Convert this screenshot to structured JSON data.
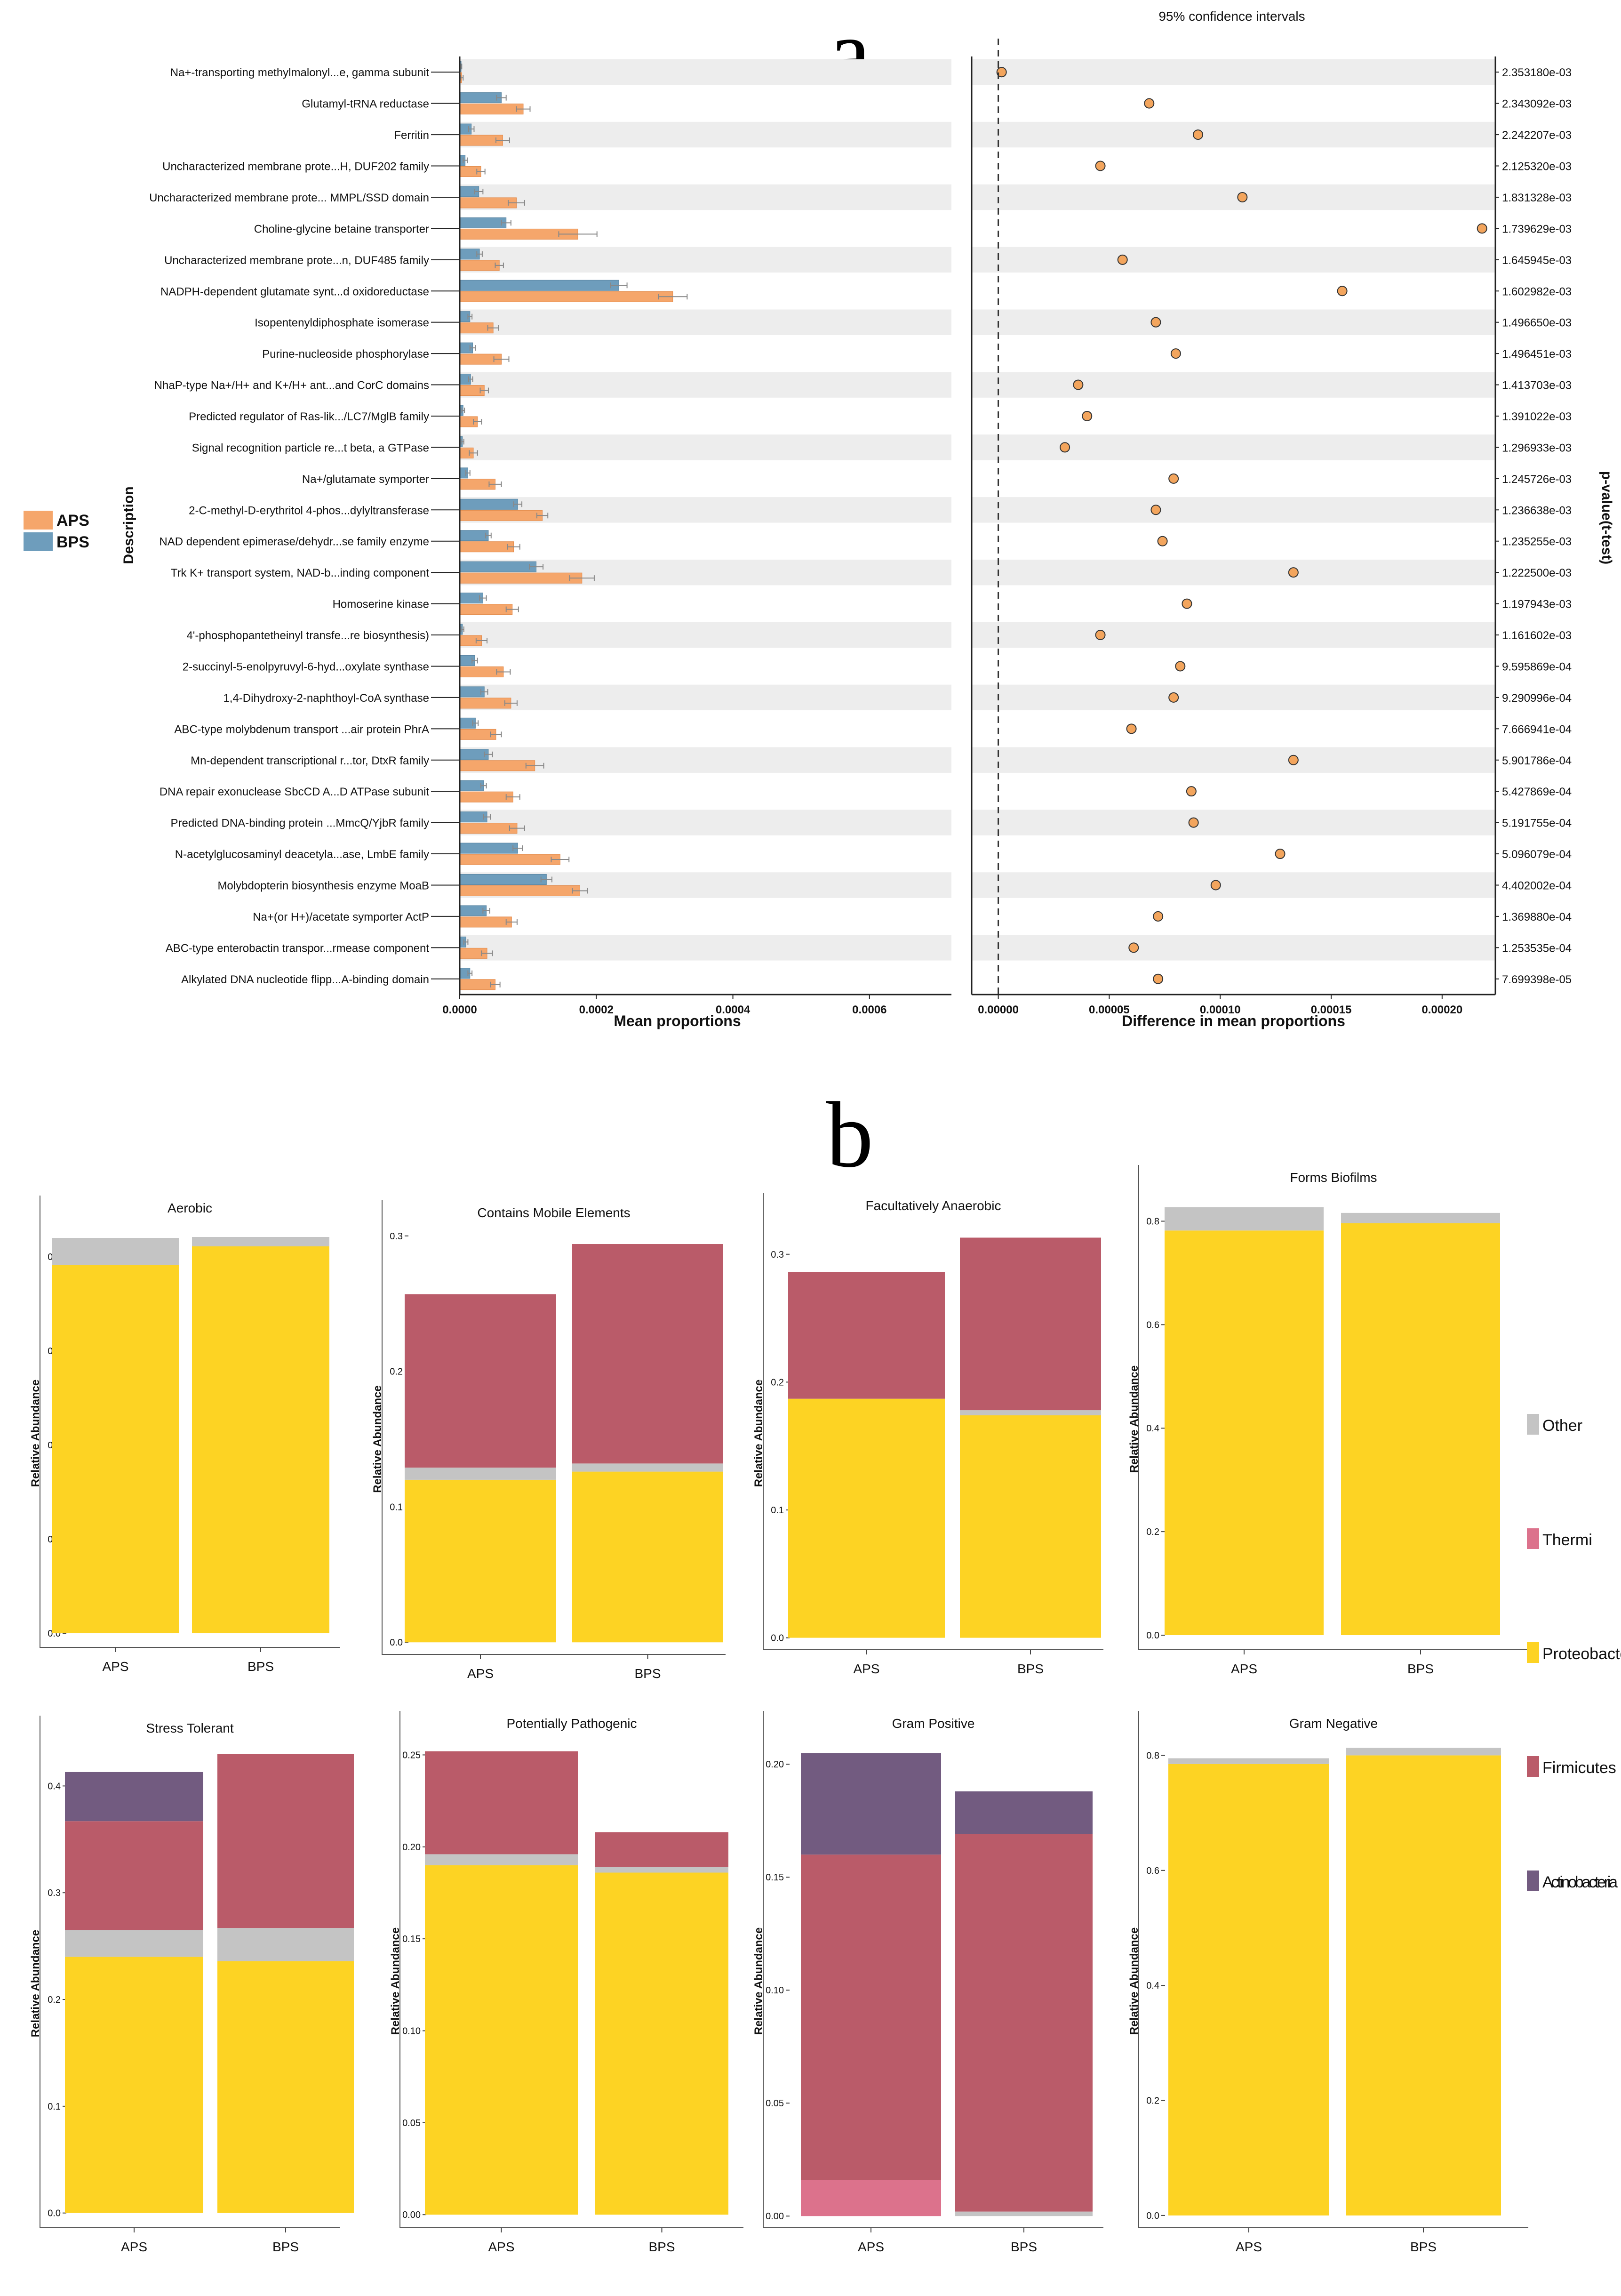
{
  "panel_labels": {
    "a": "a",
    "b": "b"
  },
  "colors": {
    "APS": "#F5A66B",
    "BPS": "#6E9DBC",
    "dot": "#F3A55D",
    "Other": "#C4C4C4",
    "Thermi": "#DC728C",
    "Proteobacteria": "#FDD323",
    "Firmicutes": "#BA5B69",
    "Actinobacteria": "#725B80"
  },
  "legend_a": [
    {
      "name": "APS",
      "color": "#F5A66B"
    },
    {
      "name": "BPS",
      "color": "#6E9DBC"
    }
  ],
  "legend_b": [
    {
      "name": "Other",
      "color": "#C4C4C4"
    },
    {
      "name": "Thermi",
      "color": "#DC728C"
    },
    {
      "name": "Proteobacteria",
      "color": "#FDD323"
    },
    {
      "name": "Firmicutes",
      "color": "#BA5B69"
    },
    {
      "name": "Actinobacteria",
      "color": "#725B80"
    }
  ],
  "chart_data": [
    {
      "id": "a-left",
      "type": "bar",
      "orientation": "horizontal",
      "xlabel": "Mean proportions",
      "ylabel": "Description",
      "xlim": [
        0,
        0.00072
      ],
      "xticks": [
        "0.0000",
        "0.0002",
        "0.0004",
        "0.0006"
      ],
      "xtick_values": [
        0,
        0.0002,
        0.0004,
        0.0006
      ],
      "categories": [
        "Na+-transporting methylmalonyl...e, gamma subunit",
        "Glutamyl-tRNA reductase",
        "Ferritin",
        "Uncharacterized membrane prote...H, DUF202 family",
        "Uncharacterized membrane prote... MMPL/SSD domain",
        "Choline-glycine betaine transporter",
        "Uncharacterized membrane prote...n, DUF485 family",
        "NADPH-dependent glutamate synt...d oxidoreductase",
        "Isopentenyldiphosphate isomerase",
        "Purine-nucleoside phosphorylase",
        "NhaP-type Na+/H+ and K+/H+ ant...and CorC domains",
        "Predicted regulator of Ras-lik.../LC7/MglB family",
        "Signal recognition particle re...t beta, a GTPase",
        "Na+/glutamate symporter",
        "2-C-methyl-D-erythritol 4-phos...dylyltransferase",
        "NAD dependent epimerase/dehydr...se family enzyme",
        "Trk K+ transport system, NAD-b...inding component",
        "Homoserine kinase",
        "4'-phosphopantetheinyl transfe...re biosynthesis)",
        "2-succinyl-5-enolpyruvyl-6-hyd...oxylate synthase",
        "1,4-Dihydroxy-2-naphthoyl-CoA synthase",
        "ABC-type molybdenum transport ...air protein PhrA",
        "Mn-dependent transcriptional r...tor, DtxR family",
        "DNA repair exonuclease SbcCD A...D ATPase subunit",
        "Predicted DNA-binding protein ...MmcQ/YjbR family",
        "N-acetylglucosaminyl deacetyla...ase, LmbE family",
        "Molybdopterin biosynthesis enzyme MoaB",
        "Na+(or H+)/acetate symporter ActP",
        "ABC-type enterobactin transpor...rmease component",
        "Alkylated DNA nucleotide flipp...A-binding domain"
      ],
      "series": [
        {
          "name": "APS",
          "values": [
            3e-06,
            9.3e-05,
            6.3e-05,
            3.1e-05,
            8.3e-05,
            0.000173,
            5.8e-05,
            0.000312,
            4.9e-05,
            6.1e-05,
            3.6e-05,
            2.6e-05,
            2e-05,
            5.2e-05,
            0.000121,
            7.9e-05,
            0.000179,
            7.7e-05,
            3.2e-05,
            6.4e-05,
            7.5e-05,
            5.3e-05,
            0.00011,
            7.8e-05,
            8.4e-05,
            0.000147,
            0.000176,
            7.6e-05,
            4e-05,
            5.2e-05
          ],
          "errors": [
            2e-06,
            1e-05,
            1e-05,
            6e-06,
            1.2e-05,
            2.8e-05,
            6e-06,
            2.1e-05,
            8e-06,
            1.1e-05,
            6e-06,
            6e-06,
            6e-06,
            9e-06,
            8e-06,
            9e-06,
            1.8e-05,
            9e-06,
            8e-06,
            1e-05,
            9e-06,
            8e-06,
            1.3e-05,
            1e-05,
            1.1e-05,
            1.3e-05,
            1.1e-05,
            8e-06,
            8e-06,
            7e-06
          ]
        },
        {
          "name": "BPS",
          "values": [
            2e-06,
            6.1e-05,
            1.7e-05,
            8e-06,
            2.8e-05,
            6.8e-05,
            2.9e-05,
            0.000233,
            1.5e-05,
            1.9e-05,
            1.6e-05,
            5e-06,
            4e-06,
            1.2e-05,
            8.5e-05,
            4.2e-05,
            0.000112,
            3.4e-05,
            4e-06,
            2.2e-05,
            3.6e-05,
            2.3e-05,
            4.2e-05,
            3.5e-05,
            4e-05,
            8.5e-05,
            0.000127,
            3.9e-05,
            9e-06,
            1.5e-05
          ],
          "errors": [
            1e-06,
            7e-06,
            4e-06,
            3e-06,
            6e-06,
            7e-06,
            4e-06,
            1.2e-05,
            3e-06,
            4e-06,
            3e-06,
            2e-06,
            2e-06,
            3e-06,
            6e-06,
            4e-06,
            1e-05,
            5e-06,
            2e-06,
            4e-06,
            5e-06,
            4e-06,
            6e-06,
            4e-06,
            5e-06,
            7e-06,
            8e-06,
            5e-06,
            3e-06,
            3e-06
          ]
        }
      ]
    },
    {
      "id": "a-right",
      "type": "scatter",
      "title": "95% confidence intervals",
      "xlabel": "Difference in mean proportions",
      "y2label": "p-value(t-test)",
      "xlim": [
        -1.2e-05,
        0.000224
      ],
      "xticks": [
        "0.00000",
        "0.00005",
        "0.00010",
        "0.00015",
        "0.00020"
      ],
      "xtick_values": [
        0,
        5e-05,
        0.0001,
        0.00015,
        0.0002
      ],
      "values": [
        1.5e-06,
        6.8e-05,
        9e-05,
        4.6e-05,
        0.00011,
        0.000218,
        5.6e-05,
        0.000155,
        7.1e-05,
        8e-05,
        3.6e-05,
        4e-05,
        3e-05,
        7.9e-05,
        7.1e-05,
        7.4e-05,
        0.000133,
        8.5e-05,
        4.6e-05,
        8.2e-05,
        7.9e-05,
        6e-05,
        0.000133,
        8.7e-05,
        8.8e-05,
        0.000127,
        9.8e-05,
        7.2e-05,
        6.1e-05,
        7.2e-05
      ],
      "pvalues": [
        "2.353180e-03",
        "2.343092e-03",
        "2.242207e-03",
        "2.125320e-03",
        "1.831328e-03",
        "1.739629e-03",
        "1.645945e-03",
        "1.602982e-03",
        "1.496650e-03",
        "1.496451e-03",
        "1.413703e-03",
        "1.391022e-03",
        "1.296933e-03",
        "1.245726e-03",
        "1.236638e-03",
        "1.235255e-03",
        "1.222500e-03",
        "1.197943e-03",
        "1.161602e-03",
        "9.595869e-04",
        "9.290996e-04",
        "7.666941e-04",
        "5.901786e-04",
        "5.427869e-04",
        "5.191755e-04",
        "5.096079e-04",
        "4.402002e-04",
        "1.369880e-04",
        "1.253535e-04",
        "7.699398e-05"
      ]
    },
    {
      "id": "b-aerobic",
      "type": "bar",
      "stacked": true,
      "title": "Aerobic",
      "ylabel": "Relative Abundance",
      "ylim": [
        -0.01,
        0.86
      ],
      "yticks": [
        "0.0",
        "0.2",
        "0.4",
        "0.6",
        "0.8"
      ],
      "ytick_values": [
        0,
        0.2,
        0.4,
        0.6,
        0.8
      ],
      "categories": [
        "APS",
        "BPS"
      ],
      "series": [
        {
          "name": "Proteobacteria",
          "values": [
            0.782,
            0.822
          ]
        },
        {
          "name": "Other",
          "values": [
            0.058,
            0.02
          ]
        }
      ]
    },
    {
      "id": "b-mobile",
      "type": "bar",
      "stacked": true,
      "title": "Contains Mobile Elements",
      "ylabel": "Relative Abundance",
      "ylim": [
        -0.002,
        0.302
      ],
      "yticks": [
        "0.0",
        "0.1",
        "0.2",
        "0.3"
      ],
      "ytick_values": [
        0,
        0.1,
        0.2,
        0.3
      ],
      "categories": [
        "APS",
        "BPS"
      ],
      "series": [
        {
          "name": "Proteobacteria",
          "values": [
            0.12,
            0.126
          ]
        },
        {
          "name": "Other",
          "values": [
            0.009,
            0.006
          ]
        },
        {
          "name": "Firmicutes",
          "values": [
            0.128,
            0.162
          ]
        }
      ]
    },
    {
      "id": "b-facultative",
      "type": "bar",
      "stacked": true,
      "title": "Facultatively Anaerobic",
      "ylabel": "Relative Abundance",
      "ylim": [
        -0.002,
        0.322
      ],
      "yticks": [
        "0.0",
        "0.1",
        "0.2",
        "0.3"
      ],
      "ytick_values": [
        0,
        0.1,
        0.2,
        0.3
      ],
      "categories": [
        "APS",
        "BPS"
      ],
      "series": [
        {
          "name": "Proteobacteria",
          "values": [
            0.187,
            0.174
          ]
        },
        {
          "name": "Other",
          "values": [
            0.0,
            0.004
          ]
        },
        {
          "name": "Firmicutes",
          "values": [
            0.099,
            0.135
          ]
        }
      ]
    },
    {
      "id": "b-biofilms",
      "type": "bar",
      "stacked": true,
      "title": "Forms Biofilms",
      "ylabel": "Relative Abundance",
      "ylim": [
        -0.01,
        0.845
      ],
      "yticks": [
        "0.0",
        "0.2",
        "0.4",
        "0.6",
        "0.8"
      ],
      "ytick_values": [
        0,
        0.2,
        0.4,
        0.6,
        0.8
      ],
      "categories": [
        "APS",
        "BPS"
      ],
      "series": [
        {
          "name": "Proteobacteria",
          "values": [
            0.782,
            0.796
          ]
        },
        {
          "name": "Other",
          "values": [
            0.045,
            0.02
          ]
        }
      ]
    },
    {
      "id": "b-stress",
      "type": "bar",
      "stacked": true,
      "title": "Stress Tolerant",
      "ylabel": "Relative Abundance",
      "ylim": [
        -0.005,
        0.435
      ],
      "yticks": [
        "0.0",
        "0.1",
        "0.2",
        "0.3",
        "0.4"
      ],
      "ytick_values": [
        0,
        0.1,
        0.2,
        0.3,
        0.4
      ],
      "categories": [
        "APS",
        "BPS"
      ],
      "series": [
        {
          "name": "Proteobacteria",
          "values": [
            0.24,
            0.236
          ]
        },
        {
          "name": "Other",
          "values": [
            0.025,
            0.031
          ]
        },
        {
          "name": "Firmicutes",
          "values": [
            0.102,
            0.163
          ]
        },
        {
          "name": "Actinobacteria",
          "values": [
            0.046,
            0.0
          ]
        }
      ]
    },
    {
      "id": "b-pathogenic",
      "type": "bar",
      "stacked": true,
      "title": "Potentially Pathogenic",
      "ylabel": "Relative Abundance",
      "ylim": [
        -0.002,
        0.256
      ],
      "yticks": [
        "0.00",
        "0.05",
        "0.10",
        "0.15",
        "0.20",
        "0.25"
      ],
      "ytick_values": [
        0,
        0.05,
        0.1,
        0.15,
        0.2,
        0.25
      ],
      "categories": [
        "APS",
        "BPS"
      ],
      "series": [
        {
          "name": "Proteobacteria",
          "values": [
            0.19,
            0.186
          ]
        },
        {
          "name": "Other",
          "values": [
            0.006,
            0.003
          ]
        },
        {
          "name": "Firmicutes",
          "values": [
            0.056,
            0.019
          ]
        }
      ]
    },
    {
      "id": "b-grampos",
      "type": "bar",
      "stacked": true,
      "title": "Gram Positive",
      "ylabel": "Relative Abundance",
      "ylim": [
        -0.001,
        0.209
      ],
      "yticks": [
        "0.00",
        "0.05",
        "0.10",
        "0.15",
        "0.20"
      ],
      "ytick_values": [
        0,
        0.05,
        0.1,
        0.15,
        0.2
      ],
      "categories": [
        "APS",
        "BPS"
      ],
      "series": [
        {
          "name": "Thermi",
          "values": [
            0.016,
            0.0
          ]
        },
        {
          "name": "Other",
          "values": [
            0.0,
            0.002
          ]
        },
        {
          "name": "Firmicutes",
          "values": [
            0.144,
            0.167
          ]
        },
        {
          "name": "Actinobacteria",
          "values": [
            0.045,
            0.019
          ]
        }
      ]
    },
    {
      "id": "b-gramneg",
      "type": "bar",
      "stacked": true,
      "title": "Gram Negative",
      "ylabel": "Relative Abundance",
      "ylim": [
        -0.005,
        0.82
      ],
      "yticks": [
        "0.0",
        "0.2",
        "0.4",
        "0.6",
        "0.8"
      ],
      "ytick_values": [
        0,
        0.2,
        0.4,
        0.6,
        0.8
      ],
      "categories": [
        "APS",
        "BPS"
      ],
      "series": [
        {
          "name": "Proteobacteria",
          "values": [
            0.785,
            0.8
          ]
        },
        {
          "name": "Other",
          "values": [
            0.01,
            0.013
          ]
        }
      ]
    }
  ]
}
